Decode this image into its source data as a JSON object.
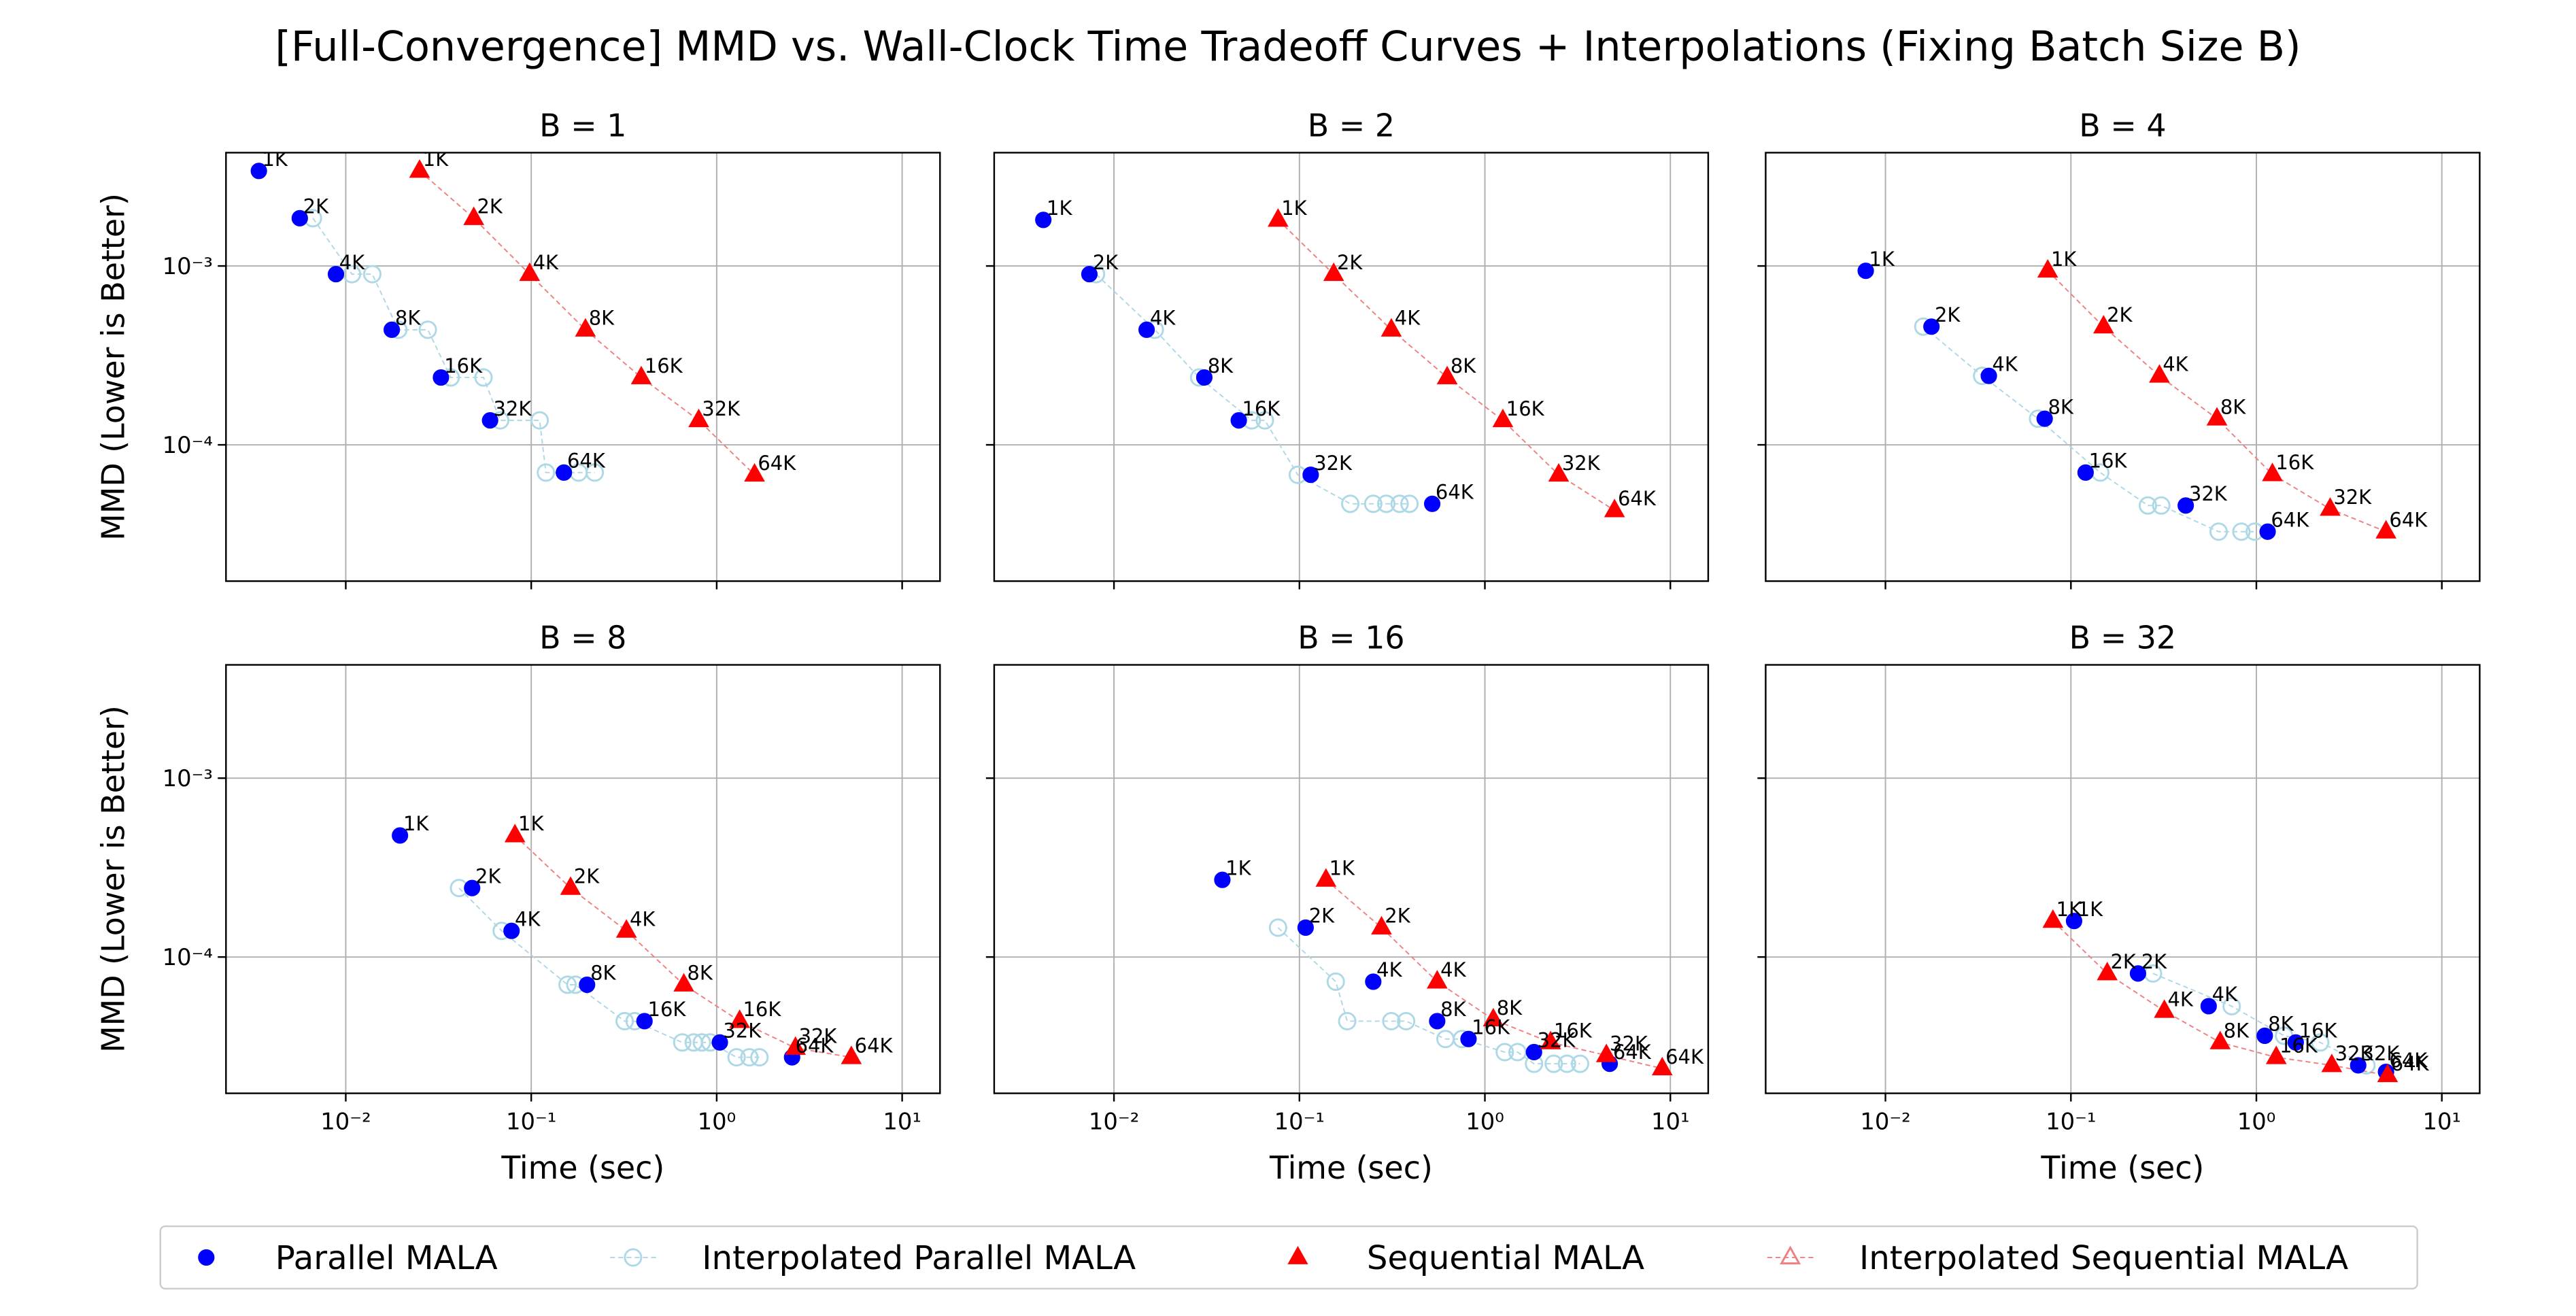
{
  "title": "[Full-Convergence] MMD vs. Wall-Clock Time Tradeoff Curves + Interpolations (Fixing Batch Size B)",
  "chart_data": [
    {
      "type": "scatter",
      "title": "B = 1",
      "ylabel": "MMD (Lower is Better)",
      "xscale": "log",
      "yscale": "log",
      "grid": true,
      "xlim": [
        0.00226,
        16
      ],
      "ylim": [
        1.73e-05,
        0.0043
      ],
      "xticks": [
        {
          "value": 0.01,
          "label": "10⁻²"
        },
        {
          "value": 0.1,
          "label": "10⁻¹"
        },
        {
          "value": 1,
          "label": "10⁰"
        },
        {
          "value": 10,
          "label": "10¹"
        }
      ],
      "yticks": [
        {
          "value": 0.0001,
          "label": "10⁻⁴"
        },
        {
          "value": 0.001,
          "label": "10⁻³"
        }
      ],
      "point_labels": [
        "1K",
        "2K",
        "4K",
        "8K",
        "16K",
        "32K",
        "64K"
      ],
      "series": [
        {
          "name": "Parallel MALA",
          "color": "#0000ff",
          "marker": "circle",
          "fill": true,
          "labeled": true,
          "x": [
            0.0034,
            0.00565,
            0.00885,
            0.0177,
            0.0326,
            0.06,
            0.15
          ],
          "values": [
            0.0034,
            0.00185,
            0.0009,
            0.00044,
            0.000238,
            0.000137,
            7e-05
          ]
        },
        {
          "name": "Interpolated Parallel MALA",
          "color": "#add8e6",
          "marker": "circle",
          "fill": false,
          "dashed": true,
          "x": [
            0.00665,
            0.0108,
            0.0139,
            0.0192,
            0.0277,
            0.0368,
            0.0553,
            0.068,
            0.111,
            0.12,
            0.18,
            0.22
          ],
          "values": [
            0.00185,
            0.0009,
            0.0009,
            0.00044,
            0.00044,
            0.000238,
            0.000238,
            0.000137,
            0.000137,
            7e-05,
            7e-05,
            7e-05
          ]
        },
        {
          "name": "Sequential MALA",
          "color": "#ff0000",
          "marker": "triangle",
          "fill": true,
          "labeled": true,
          "x": [
            0.025,
            0.049,
            0.098,
            0.196,
            0.392,
            0.8,
            1.6
          ],
          "values": [
            0.0034,
            0.00185,
            0.0009,
            0.00044,
            0.000238,
            0.000137,
            6.8e-05
          ]
        },
        {
          "name": "Interpolated Sequential MALA",
          "color": "#f08080",
          "marker": "triangle",
          "fill": false,
          "dashed": true,
          "x": [
            0.025,
            0.049,
            0.098,
            0.196,
            0.392,
            0.8,
            1.6
          ],
          "values": [
            0.0034,
            0.00185,
            0.0009,
            0.00044,
            0.000238,
            0.000137,
            6.8e-05
          ]
        }
      ]
    },
    {
      "type": "scatter",
      "title": "B = 2",
      "xscale": "log",
      "yscale": "log",
      "grid": true,
      "xlim": [
        0.00226,
        16
      ],
      "ylim": [
        1.73e-05,
        0.0043
      ],
      "xticks": [
        {
          "value": 0.01,
          "label": "10⁻²"
        },
        {
          "value": 0.1,
          "label": "10⁻¹"
        },
        {
          "value": 1,
          "label": "10⁰"
        },
        {
          "value": 10,
          "label": "10¹"
        }
      ],
      "yticks": [
        {
          "value": 0.0001,
          "label": "10⁻⁴"
        },
        {
          "value": 0.001,
          "label": "10⁻³"
        }
      ],
      "point_labels": [
        "1K",
        "2K",
        "4K",
        "8K",
        "16K",
        "32K",
        "64K"
      ],
      "series": [
        {
          "name": "Parallel MALA",
          "color": "#0000ff",
          "marker": "circle",
          "fill": true,
          "labeled": true,
          "x": [
            0.00416,
            0.00737,
            0.015,
            0.0307,
            0.0471,
            0.115,
            0.52
          ],
          "values": [
            0.00181,
            0.0009,
            0.00044,
            0.000238,
            0.000137,
            6.8e-05,
            4.68e-05
          ]
        },
        {
          "name": "Interpolated Parallel MALA",
          "color": "#add8e6",
          "marker": "circle",
          "fill": false,
          "dashed": true,
          "x": [
            0.008,
            0.0166,
            0.0288,
            0.0553,
            0.0651,
            0.098,
            0.188,
            0.25,
            0.294,
            0.347,
            0.392
          ],
          "values": [
            0.0009,
            0.00044,
            0.000238,
            0.000137,
            0.000137,
            6.8e-05,
            4.68e-05,
            4.68e-05,
            4.68e-05,
            4.68e-05,
            4.68e-05
          ]
        },
        {
          "name": "Sequential MALA",
          "color": "#ff0000",
          "marker": "triangle",
          "fill": true,
          "labeled": true,
          "x": [
            0.0767,
            0.153,
            0.313,
            0.626,
            1.25,
            2.5,
            5.0
          ],
          "values": [
            0.00181,
            0.0009,
            0.00044,
            0.000238,
            0.000137,
            6.8e-05,
            4.3e-05
          ]
        },
        {
          "name": "Interpolated Sequential MALA",
          "color": "#f08080",
          "marker": "triangle",
          "fill": false,
          "dashed": true,
          "x": [
            0.0767,
            0.153,
            0.313,
            0.626,
            1.25,
            2.5,
            5.0
          ],
          "values": [
            0.00181,
            0.0009,
            0.00044,
            0.000238,
            0.000137,
            6.8e-05,
            4.3e-05
          ]
        }
      ]
    },
    {
      "type": "scatter",
      "title": "B = 4",
      "xscale": "log",
      "yscale": "log",
      "grid": true,
      "xlim": [
        0.00226,
        16
      ],
      "ylim": [
        1.73e-05,
        0.0043
      ],
      "xticks": [
        {
          "value": 0.01,
          "label": "10⁻²"
        },
        {
          "value": 0.1,
          "label": "10⁻¹"
        },
        {
          "value": 1,
          "label": "10⁰"
        },
        {
          "value": 10,
          "label": "10¹"
        }
      ],
      "yticks": [
        {
          "value": 0.0001,
          "label": "10⁻⁴"
        },
        {
          "value": 0.001,
          "label": "10⁻³"
        }
      ],
      "point_labels": [
        "1K",
        "2K",
        "4K",
        "8K",
        "16K",
        "32K",
        "64K"
      ],
      "series": [
        {
          "name": "Parallel MALA",
          "color": "#0000ff",
          "marker": "circle",
          "fill": true,
          "labeled": true,
          "x": [
            0.00783,
            0.0177,
            0.0361,
            0.0722,
            0.12,
            0.416,
            1.15
          ],
          "values": [
            0.00094,
            0.000458,
            0.000243,
            0.00014,
            7e-05,
            4.58e-05,
            3.27e-05
          ]
        },
        {
          "name": "Interpolated Parallel MALA",
          "color": "#add8e6",
          "marker": "circle",
          "fill": false,
          "dashed": true,
          "x": [
            0.016,
            0.0332,
            0.0665,
            0.144,
            0.26,
            0.307,
            0.626,
            0.83,
            0.98
          ],
          "values": [
            0.000458,
            0.000243,
            0.00014,
            7e-05,
            4.58e-05,
            4.58e-05,
            3.27e-05,
            3.27e-05,
            3.27e-05
          ]
        },
        {
          "name": "Sequential MALA",
          "color": "#ff0000",
          "marker": "triangle",
          "fill": true,
          "labeled": true,
          "x": [
            0.075,
            0.15,
            0.3,
            0.613,
            1.22,
            2.5,
            5.0
          ],
          "values": [
            0.00094,
            0.000458,
            0.000243,
            0.00014,
            6.84e-05,
            4.38e-05,
            3.27e-05
          ]
        },
        {
          "name": "Interpolated Sequential MALA",
          "color": "#f08080",
          "marker": "triangle",
          "fill": false,
          "dashed": true,
          "x": [
            0.075,
            0.15,
            0.3,
            0.613,
            1.22,
            2.5,
            5.0
          ],
          "values": [
            0.00094,
            0.000458,
            0.000243,
            0.00014,
            6.84e-05,
            4.38e-05,
            3.27e-05
          ]
        }
      ]
    },
    {
      "type": "scatter",
      "title": "B = 8",
      "xlabel": "Time (sec)",
      "ylabel": "MMD (Lower is Better)",
      "xscale": "log",
      "yscale": "log",
      "grid": true,
      "xlim": [
        0.00226,
        16
      ],
      "ylim": [
        1.73e-05,
        0.0043
      ],
      "xticks": [
        {
          "value": 0.01,
          "label": "10⁻²"
        },
        {
          "value": 0.1,
          "label": "10⁻¹"
        },
        {
          "value": 1,
          "label": "10⁰"
        },
        {
          "value": 10,
          "label": "10¹"
        }
      ],
      "yticks": [
        {
          "value": 0.0001,
          "label": "10⁻⁴"
        },
        {
          "value": 0.001,
          "label": "10⁻³"
        }
      ],
      "point_labels": [
        "1K",
        "2K",
        "4K",
        "8K",
        "16K",
        "32K",
        "64K"
      ],
      "series": [
        {
          "name": "Parallel MALA",
          "color": "#0000ff",
          "marker": "circle",
          "fill": true,
          "labeled": true,
          "x": [
            0.0196,
            0.048,
            0.0783,
            0.2,
            0.408,
            1.04,
            2.55
          ],
          "values": [
            0.000478,
            0.000243,
            0.00014,
            7e-05,
            4.38e-05,
            3.33e-05,
            2.75e-05
          ]
        },
        {
          "name": "Interpolated Parallel MALA",
          "color": "#add8e6",
          "marker": "circle",
          "fill": false,
          "dashed": true,
          "x": [
            0.0408,
            0.0693,
            0.157,
            0.173,
            0.319,
            0.361,
            0.652,
            0.752,
            0.832,
            0.922,
            1.28,
            1.5,
            1.7
          ],
          "values": [
            0.000243,
            0.00014,
            7e-05,
            7e-05,
            4.38e-05,
            4.38e-05,
            3.33e-05,
            3.33e-05,
            3.33e-05,
            3.33e-05,
            2.75e-05,
            2.75e-05,
            2.75e-05
          ]
        },
        {
          "name": "Sequential MALA",
          "color": "#ff0000",
          "marker": "triangle",
          "fill": true,
          "labeled": true,
          "x": [
            0.0817,
            0.163,
            0.326,
            0.665,
            1.33,
            2.66,
            5.32
          ],
          "values": [
            0.000478,
            0.000243,
            0.00014,
            7e-05,
            4.38e-05,
            3.1e-05,
            2.75e-05
          ]
        },
        {
          "name": "Interpolated Sequential MALA",
          "color": "#f08080",
          "marker": "triangle",
          "fill": false,
          "dashed": true,
          "x": [
            0.0817,
            0.163,
            0.326,
            0.665,
            1.33,
            2.66,
            5.32
          ],
          "values": [
            0.000478,
            0.000243,
            0.00014,
            7e-05,
            4.38e-05,
            3.1e-05,
            2.75e-05
          ]
        }
      ]
    },
    {
      "type": "scatter",
      "title": "B = 16",
      "xlabel": "Time (sec)",
      "xscale": "log",
      "yscale": "log",
      "grid": true,
      "xlim": [
        0.00226,
        16
      ],
      "ylim": [
        1.73e-05,
        0.0043
      ],
      "xticks": [
        {
          "value": 0.01,
          "label": "10⁻²"
        },
        {
          "value": 0.1,
          "label": "10⁻¹"
        },
        {
          "value": 1,
          "label": "10⁰"
        },
        {
          "value": 10,
          "label": "10¹"
        }
      ],
      "yticks": [
        {
          "value": 0.0001,
          "label": "10⁻⁴"
        },
        {
          "value": 0.001,
          "label": "10⁻³"
        }
      ],
      "point_labels": [
        "1K",
        "2K",
        "4K",
        "8K",
        "16K",
        "32K",
        "64K"
      ],
      "series": [
        {
          "name": "Parallel MALA",
          "color": "#0000ff",
          "marker": "circle",
          "fill": true,
          "labeled": true,
          "x": [
            0.0384,
            0.108,
            0.25,
            0.553,
            0.816,
            1.84,
            4.71
          ],
          "values": [
            0.00027,
            0.000146,
            7.28e-05,
            4.38e-05,
            3.48e-05,
            2.94e-05,
            2.53e-05
          ]
        },
        {
          "name": "Interpolated Parallel MALA",
          "color": "#add8e6",
          "marker": "circle",
          "fill": false,
          "dashed": true,
          "x": [
            0.0767,
            0.157,
            0.181,
            0.313,
            0.376,
            0.613,
            0.752,
            1.28,
            1.5,
            1.84,
            2.35,
            2.77,
            3.26
          ],
          "values": [
            0.000146,
            7.28e-05,
            4.38e-05,
            4.38e-05,
            4.38e-05,
            3.48e-05,
            3.48e-05,
            2.94e-05,
            2.94e-05,
            2.53e-05,
            2.53e-05,
            2.53e-05,
            2.53e-05
          ]
        },
        {
          "name": "Sequential MALA",
          "color": "#ff0000",
          "marker": "triangle",
          "fill": true,
          "labeled": true,
          "x": [
            0.139,
            0.277,
            0.553,
            1.11,
            2.26,
            4.52,
            9.04
          ],
          "values": [
            0.00027,
            0.000146,
            7.28e-05,
            4.47e-05,
            3.33e-05,
            2.82e-05,
            2.38e-05
          ]
        },
        {
          "name": "Interpolated Sequential MALA",
          "color": "#f08080",
          "marker": "triangle",
          "fill": false,
          "dashed": true,
          "x": [
            0.139,
            0.277,
            0.553,
            1.11,
            2.26,
            4.52,
            9.04
          ],
          "values": [
            0.00027,
            0.000146,
            7.28e-05,
            4.47e-05,
            3.33e-05,
            2.82e-05,
            2.38e-05
          ]
        }
      ]
    },
    {
      "type": "scatter",
      "title": "B = 32",
      "xlabel": "Time (sec)",
      "xscale": "log",
      "yscale": "log",
      "grid": true,
      "xlim": [
        0.00226,
        16
      ],
      "ylim": [
        1.73e-05,
        0.0043
      ],
      "xticks": [
        {
          "value": 0.01,
          "label": "10⁻²"
        },
        {
          "value": 0.1,
          "label": "10⁻¹"
        },
        {
          "value": 1,
          "label": "10⁰"
        },
        {
          "value": 10,
          "label": "10¹"
        }
      ],
      "yticks": [
        {
          "value": 0.0001,
          "label": "10⁻⁴"
        },
        {
          "value": 0.001,
          "label": "10⁻³"
        }
      ],
      "point_labels": [
        "1K",
        "2K",
        "4K",
        "8K",
        "16K",
        "32K",
        "64K"
      ],
      "series": [
        {
          "name": "Parallel MALA",
          "color": "#0000ff",
          "marker": "circle",
          "fill": true,
          "labeled": true,
          "x": [
            0.104,
            0.23,
            0.553,
            1.11,
            1.63,
            3.54,
            5.0
          ],
          "values": [
            0.000159,
            8.09e-05,
            5.31e-05,
            3.63e-05,
            3.33e-05,
            2.48e-05,
            2.28e-05
          ]
        },
        {
          "name": "Interpolated Parallel MALA",
          "color": "#add8e6",
          "marker": "circle",
          "fill": false,
          "dashed": true,
          "x": [
            0.277,
            0.736,
            1.41,
            2.21,
            3.92
          ],
          "values": [
            8.09e-05,
            5.31e-05,
            3.63e-05,
            3.33e-05,
            2.48e-05
          ]
        },
        {
          "name": "Sequential MALA",
          "color": "#ff0000",
          "marker": "triangle",
          "fill": true,
          "labeled": true,
          "x": [
            0.08,
            0.157,
            0.319,
            0.638,
            1.28,
            2.55,
            5.1
          ],
          "values": [
            0.000159,
            8.09e-05,
            4.99e-05,
            3.33e-05,
            2.75e-05,
            2.48e-05,
            2.18e-05
          ]
        },
        {
          "name": "Interpolated Sequential MALA",
          "color": "#f08080",
          "marker": "triangle",
          "fill": false,
          "dashed": true,
          "x": [
            0.08,
            0.157,
            0.319,
            0.638,
            1.28,
            2.55,
            5.1
          ],
          "values": [
            0.000159,
            8.09e-05,
            4.99e-05,
            3.33e-05,
            2.75e-05,
            2.48e-05,
            2.18e-05
          ]
        }
      ]
    }
  ]
}
